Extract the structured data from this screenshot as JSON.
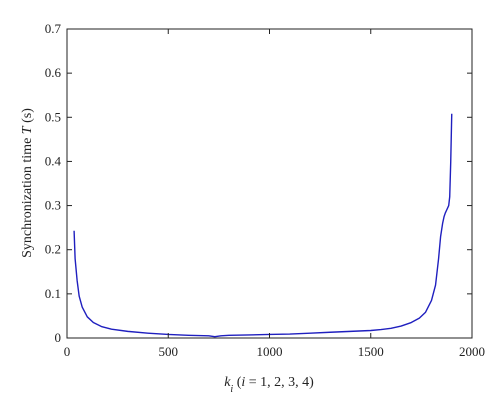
{
  "chart_data": {
    "type": "line",
    "ylabel_parts": [
      "Synchronization time ",
      "T",
      " (s)"
    ],
    "xlabel_parts": [
      "k",
      "i",
      " (",
      "i",
      " = 1, 2, 3, 4)"
    ],
    "xlim": [
      0,
      2000
    ],
    "ylim": [
      0,
      0.7
    ],
    "xticks": [
      0,
      500,
      1000,
      1500,
      2000
    ],
    "xtick_labels": [
      "0",
      "500",
      "1000",
      "1500",
      "2000"
    ],
    "yticks": [
      0,
      0.1,
      0.2,
      0.3,
      0.4,
      0.5,
      0.6,
      0.7
    ],
    "ytick_labels": [
      "0",
      "0.1",
      "0.2",
      "0.3",
      "0.4",
      "0.5",
      "0.6",
      "0.7"
    ],
    "grid": false,
    "series": [
      {
        "color": "#1f1fbf",
        "x": [
          35,
          40,
          50,
          60,
          75,
          100,
          130,
          170,
          220,
          300,
          400,
          500,
          600,
          700,
          730,
          760,
          800,
          900,
          1000,
          1100,
          1200,
          1300,
          1400,
          1500,
          1550,
          1600,
          1650,
          1700,
          1740,
          1770,
          1800,
          1820,
          1835,
          1845,
          1855,
          1862,
          1868,
          1875,
          1880,
          1885,
          1890,
          1895,
          1900
        ],
        "y": [
          0.243,
          0.18,
          0.13,
          0.095,
          0.07,
          0.048,
          0.035,
          0.026,
          0.02,
          0.015,
          0.011,
          0.008,
          0.006,
          0.005,
          0.003,
          0.005,
          0.006,
          0.007,
          0.008,
          0.009,
          0.011,
          0.013,
          0.015,
          0.017,
          0.019,
          0.022,
          0.027,
          0.035,
          0.045,
          0.058,
          0.085,
          0.12,
          0.18,
          0.23,
          0.26,
          0.275,
          0.283,
          0.29,
          0.295,
          0.3,
          0.32,
          0.4,
          0.508
        ]
      }
    ]
  }
}
